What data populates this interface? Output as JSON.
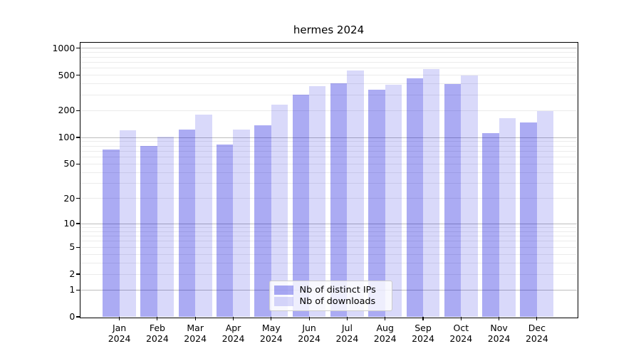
{
  "title": "hermes 2024",
  "chart_data": {
    "type": "bar",
    "title": "hermes 2024",
    "categories": [
      "Jan",
      "Feb",
      "Mar",
      "Apr",
      "May",
      "Jun",
      "Jul",
      "Aug",
      "Sep",
      "Oct",
      "Nov",
      "Dec"
    ],
    "x_tick_year": "2024",
    "series": [
      {
        "name": "Nb of distinct IPs",
        "color": "rgba(0,0,220,0.33)",
        "values": [
          73,
          80,
          123,
          83,
          137,
          302,
          406,
          344,
          459,
          396,
          112,
          147
        ]
      },
      {
        "name": "Nb of downloads",
        "color": "rgba(0,0,220,0.15)",
        "values": [
          120,
          102,
          180,
          122,
          233,
          377,
          562,
          391,
          586,
          497,
          164,
          197
        ]
      }
    ],
    "y_axis": {
      "scale": "log1p",
      "ylim": [
        0,
        1140
      ],
      "tick_labels": [
        0,
        1,
        2,
        5,
        10,
        20,
        50,
        100,
        200,
        500,
        1000
      ],
      "major_gridlines": [
        1,
        10,
        100,
        1000
      ],
      "minor_gridlines": [
        2,
        3,
        4,
        5,
        6,
        7,
        8,
        9,
        20,
        30,
        40,
        50,
        60,
        70,
        80,
        90,
        200,
        300,
        400,
        500,
        600,
        700,
        800,
        900
      ]
    },
    "grid": "on",
    "legend_position": "lower center"
  },
  "colors": {
    "distinct_ips": "rgba(0,0,220,0.33)",
    "downloads": "rgba(0,0,220,0.15)",
    "major_grid": "#bdbdbd",
    "minor_grid": "#ebebeb",
    "frame": "#000000"
  }
}
